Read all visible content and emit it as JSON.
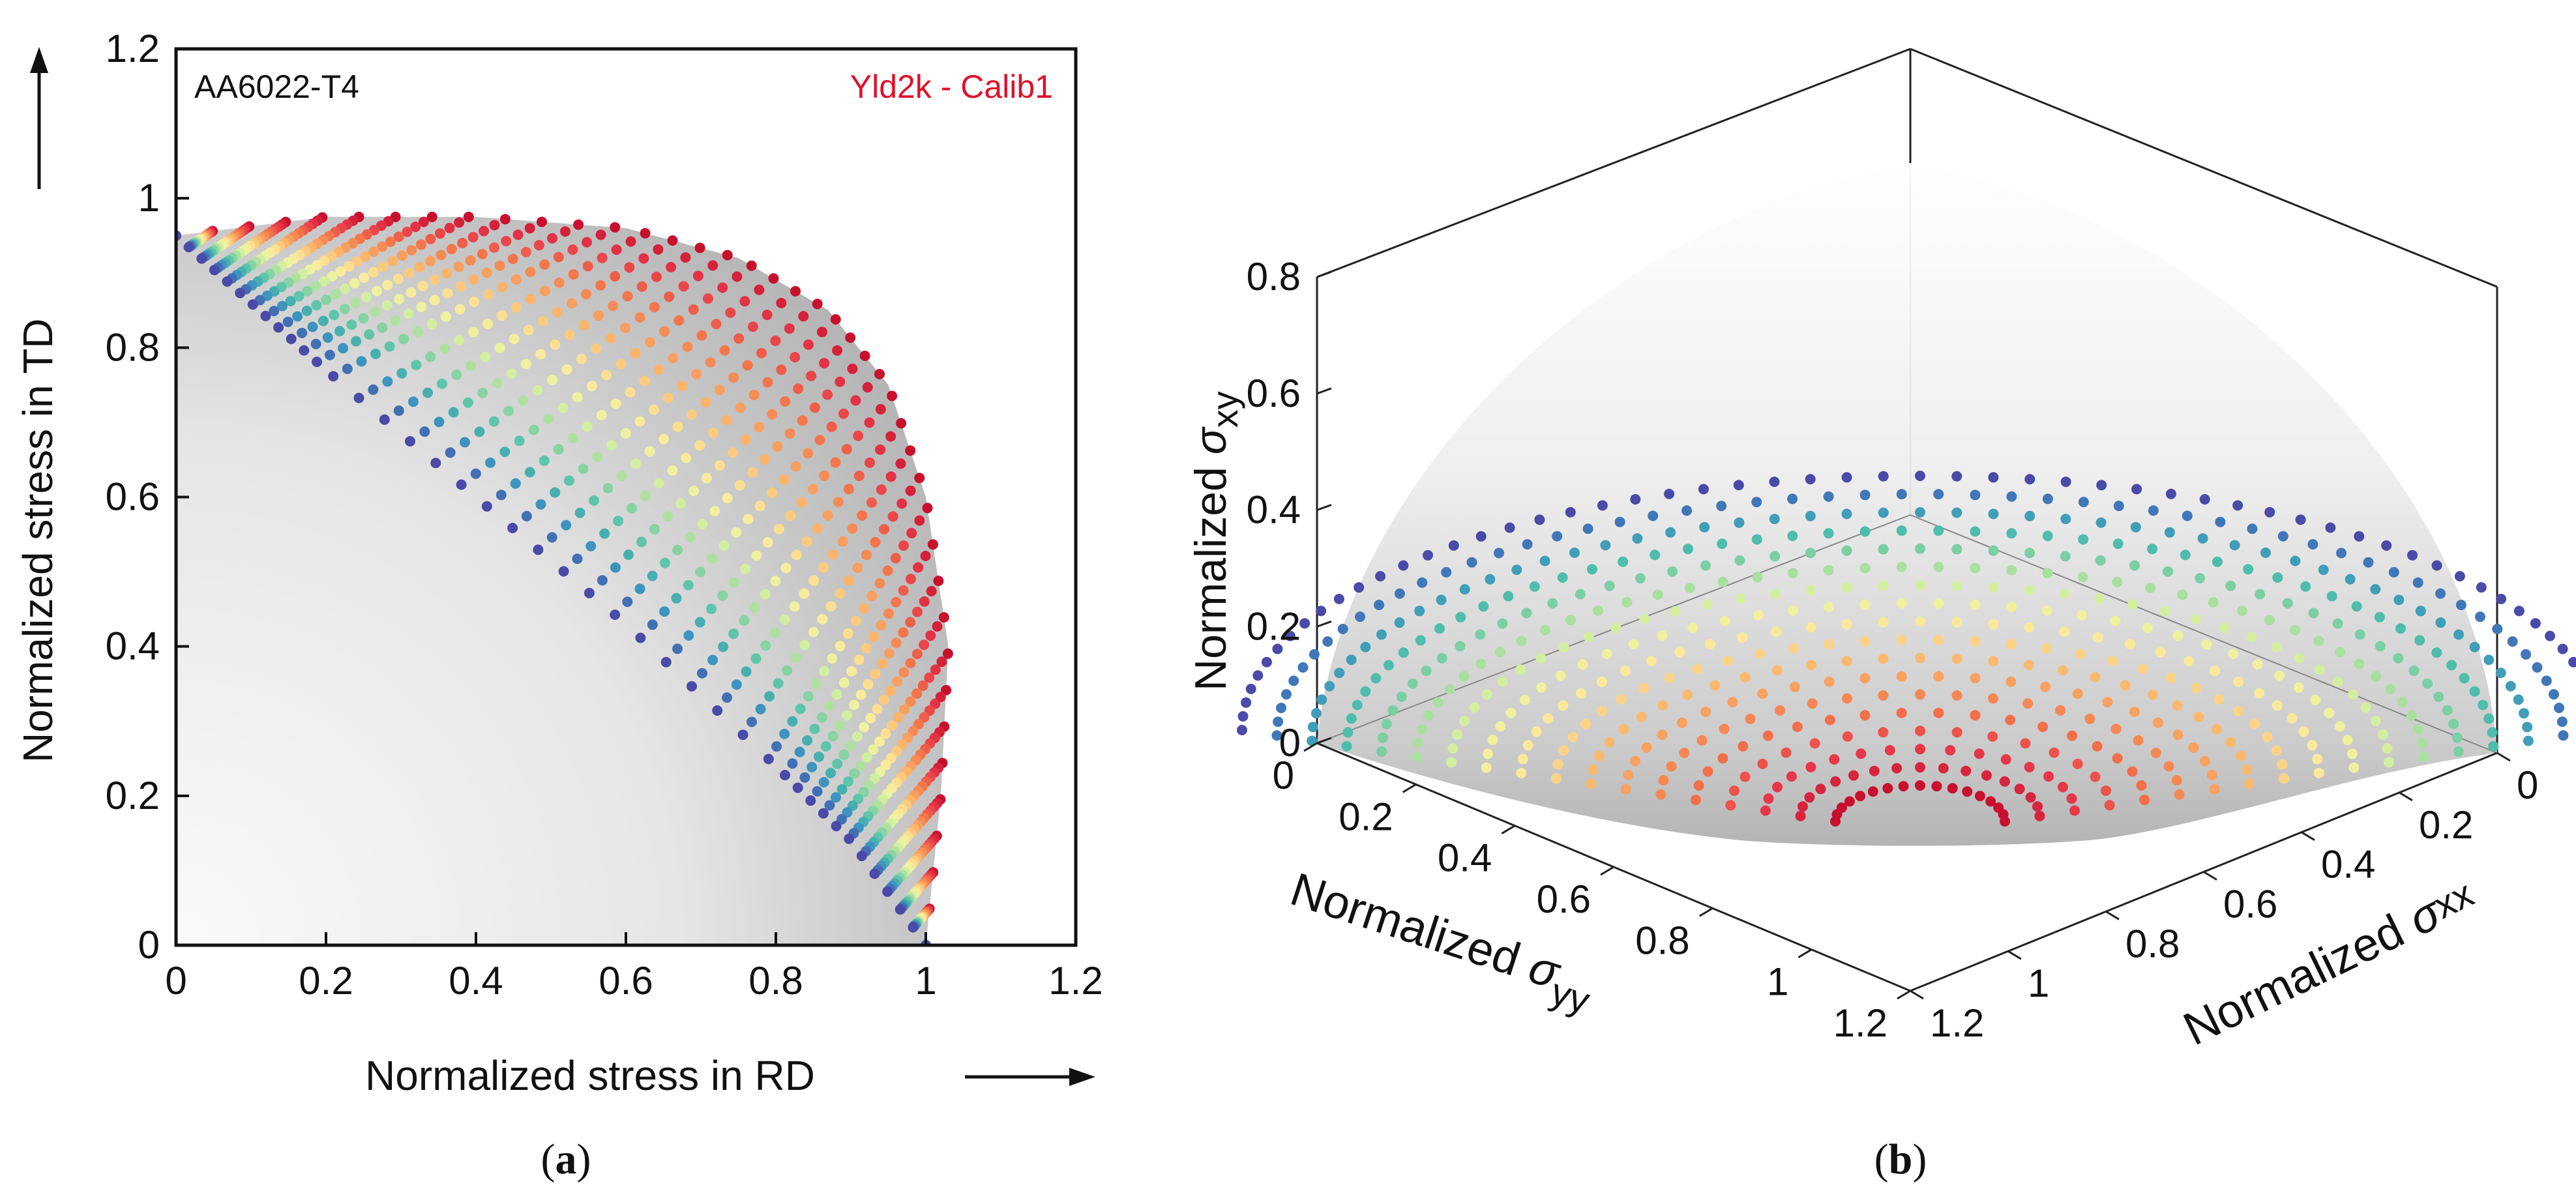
{
  "chart_data": [
    {
      "panel": "(a)",
      "panel_letter": "a",
      "type": "scatter",
      "material": "AA6022-T4",
      "model": "Yld2k - Calib1",
      "xlabel": "Normalized stress in RD",
      "ylabel": "Normalized stress in TD",
      "xlim": [
        0,
        1.2
      ],
      "ylim": [
        0,
        1.2
      ],
      "xticks": [
        "0",
        "0.2",
        "0.4",
        "0.6",
        "0.8",
        "1",
        "1.2"
      ],
      "yticks": [
        "0",
        "0.2",
        "0.4",
        "0.6",
        "0.8",
        "1",
        "1.2"
      ],
      "description_of_series": "Yield-surface points projected on the RD-TD plane, colored by normalized shear stress level (blue = high shear, red = zero shear)",
      "outer_contour_points": [
        [
          0.0,
          0.95
        ],
        [
          0.2,
          0.975
        ],
        [
          0.4,
          0.975
        ],
        [
          0.6,
          0.96
        ],
        [
          0.75,
          0.92
        ],
        [
          0.87,
          0.85
        ],
        [
          0.95,
          0.75
        ],
        [
          1.0,
          0.6
        ],
        [
          1.03,
          0.4
        ],
        [
          1.02,
          0.2
        ],
        [
          1.0,
          0.0
        ]
      ],
      "inner_contour_points": [
        [
          0.0,
          0.95
        ],
        [
          0.1,
          0.86
        ],
        [
          0.2,
          0.77
        ],
        [
          0.4,
          0.6
        ],
        [
          0.6,
          0.43
        ],
        [
          0.8,
          0.24
        ],
        [
          0.9,
          0.14
        ],
        [
          1.0,
          0.0
        ]
      ]
    },
    {
      "panel": "(b)",
      "panel_letter": "b",
      "type": "scatter3d",
      "zlabel_prefix": "Normalized ",
      "zlabel_symbol": "σ",
      "zlabel_sub": "xy",
      "xlabel_prefix": "Normalized ",
      "xlabel_symbol": "σ",
      "xlabel_sub": "xx",
      "ylabel_prefix": "Normalized ",
      "ylabel_symbol": "σ",
      "ylabel_sub": "yy",
      "zlim": [
        0,
        0.8
      ],
      "xlim": [
        0,
        1.2
      ],
      "ylim": [
        0,
        1.2
      ],
      "zticks": [
        "0",
        "0.2",
        "0.4",
        "0.6",
        "0.8"
      ],
      "xticks": [
        "0",
        "0.2",
        "0.4",
        "0.6",
        "0.8",
        "1",
        "1.2"
      ],
      "yticks": [
        "0",
        "0.2",
        "0.4",
        "0.6",
        "0.8",
        "1",
        "1.2"
      ],
      "max_shear": 0.55,
      "description_of_series": "Yield surface points in (σxx, σyy, σxy) space, colored by σxy level"
    }
  ]
}
